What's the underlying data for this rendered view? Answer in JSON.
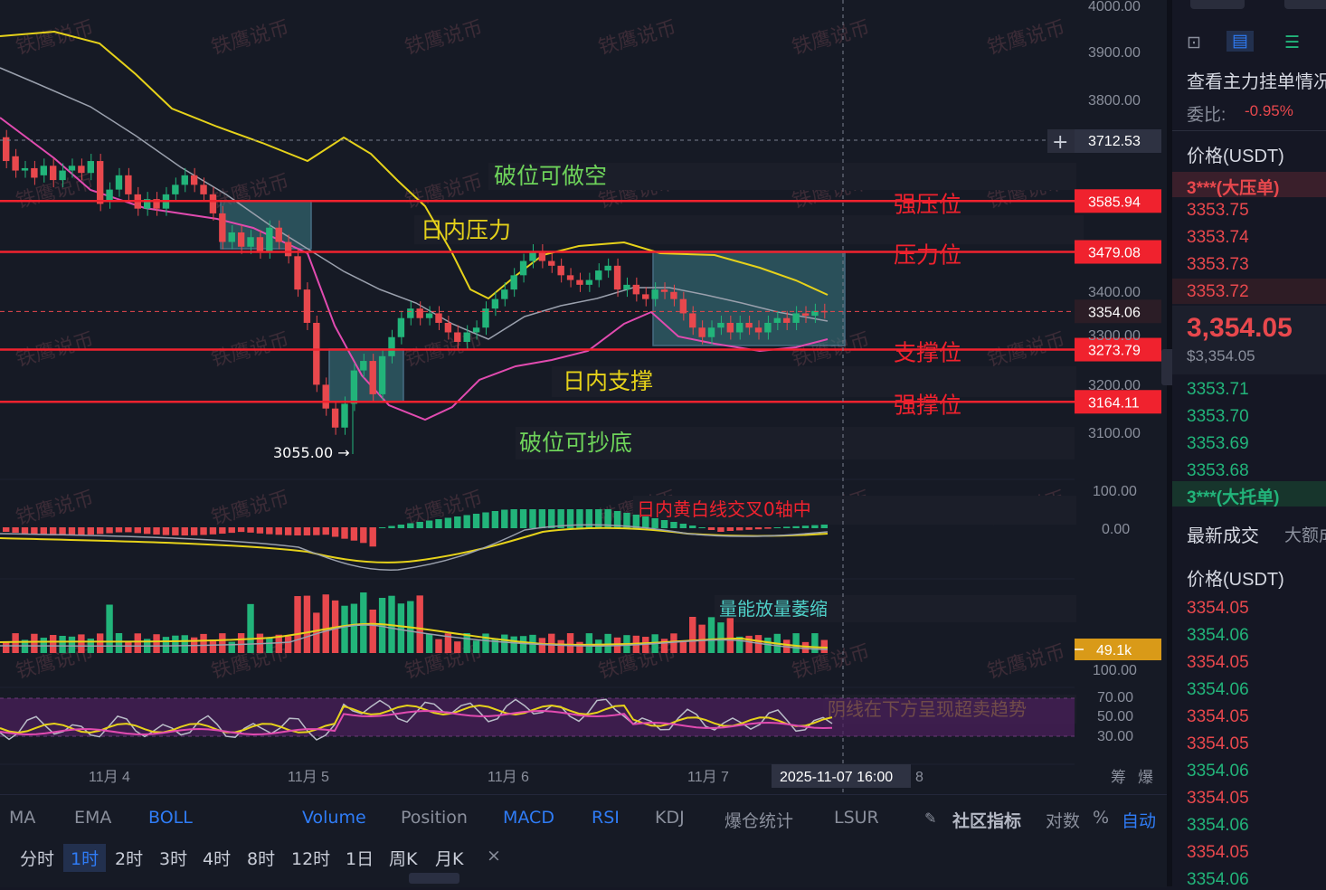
{
  "chart_data": {
    "type": "candlestick",
    "x_ticks": [
      "11月 4",
      "11月 5",
      "11月 6",
      "11月 7",
      "8"
    ],
    "y_ticks": [
      "4000.00",
      "3900.00",
      "3800.00",
      "3400.00",
      "3300.00",
      "3200.00",
      "3100.00"
    ],
    "macd_ticks": [
      "100.00",
      "0.00"
    ],
    "volume_ticks": [
      "100.00"
    ],
    "rsi_ticks": [
      "70.00",
      "50.00",
      "30.00"
    ],
    "crosshair_price": "3712.53",
    "crosshair_time": "2025-11-07 16:00",
    "current_price": "3354.06",
    "low_marker": "3055.00 →",
    "volume_value": "49.1k",
    "levels": [
      {
        "price": 3585.94,
        "label": "3585.94",
        "annotation": "强压位"
      },
      {
        "price": 3479.08,
        "label": "3479.08",
        "annotation": "压力位"
      },
      {
        "price": 3273.79,
        "label": "3273.79",
        "annotation": "支撑位"
      },
      {
        "price": 3164.11,
        "label": "3164.11",
        "annotation": "强撑位"
      }
    ],
    "annotations": {
      "short": "破位可做空",
      "intraday_resistance": "日内压力",
      "intraday_support": "日内支撑",
      "bottom": "破位可抄底",
      "macd": "日内黄白线交叉0轴中",
      "volume": "量能放量萎缩",
      "rsi": "阴线在下方呈现超卖趋势"
    },
    "watermark": "铁鹰说币",
    "candles": [
      [
        3720,
        3670
      ],
      [
        3680,
        3650
      ],
      [
        3650,
        3655
      ],
      [
        3655,
        3635
      ],
      [
        3640,
        3660
      ],
      [
        3660,
        3630
      ],
      [
        3630,
        3650
      ],
      [
        3650,
        3660
      ],
      [
        3660,
        3645
      ],
      [
        3645,
        3670
      ],
      [
        3670,
        3580
      ],
      [
        3585,
        3610
      ],
      [
        3610,
        3640
      ],
      [
        3640,
        3600
      ],
      [
        3600,
        3570
      ],
      [
        3570,
        3590
      ],
      [
        3590,
        3570
      ],
      [
        3570,
        3600
      ],
      [
        3600,
        3620
      ],
      [
        3620,
        3640
      ],
      [
        3640,
        3620
      ],
      [
        3620,
        3600
      ],
      [
        3600,
        3560
      ],
      [
        3560,
        3500
      ],
      [
        3500,
        3520
      ],
      [
        3520,
        3490
      ],
      [
        3490,
        3510
      ],
      [
        3510,
        3480
      ],
      [
        3480,
        3530
      ],
      [
        3530,
        3500
      ],
      [
        3500,
        3470
      ],
      [
        3470,
        3400
      ],
      [
        3400,
        3330
      ],
      [
        3330,
        3200
      ],
      [
        3200,
        3150
      ],
      [
        3150,
        3110
      ],
      [
        3110,
        3160
      ],
      [
        3160,
        3230
      ],
      [
        3230,
        3250
      ],
      [
        3250,
        3180
      ],
      [
        3180,
        3260
      ],
      [
        3260,
        3300
      ],
      [
        3300,
        3340
      ],
      [
        3340,
        3360
      ],
      [
        3360,
        3340
      ],
      [
        3340,
        3350
      ],
      [
        3350,
        3330
      ],
      [
        3330,
        3310
      ],
      [
        3310,
        3290
      ],
      [
        3290,
        3310
      ],
      [
        3310,
        3320
      ],
      [
        3320,
        3360
      ],
      [
        3360,
        3380
      ],
      [
        3380,
        3400
      ],
      [
        3400,
        3430
      ],
      [
        3430,
        3460
      ],
      [
        3460,
        3480
      ],
      [
        3480,
        3460
      ],
      [
        3460,
        3450
      ],
      [
        3450,
        3430
      ],
      [
        3430,
        3420
      ],
      [
        3420,
        3410
      ],
      [
        3410,
        3420
      ],
      [
        3420,
        3440
      ],
      [
        3440,
        3450
      ],
      [
        3450,
        3400
      ],
      [
        3400,
        3410
      ],
      [
        3410,
        3390
      ],
      [
        3390,
        3380
      ],
      [
        3380,
        3400
      ],
      [
        3400,
        3395
      ],
      [
        3395,
        3380
      ],
      [
        3380,
        3350
      ],
      [
        3350,
        3320
      ],
      [
        3320,
        3300
      ],
      [
        3300,
        3320
      ],
      [
        3320,
        3330
      ],
      [
        3330,
        3310
      ],
      [
        3310,
        3330
      ],
      [
        3330,
        3320
      ],
      [
        3320,
        3310
      ],
      [
        3310,
        3330
      ],
      [
        3330,
        3340
      ],
      [
        3340,
        3330
      ],
      [
        3330,
        3350
      ],
      [
        3350,
        3345
      ],
      [
        3345,
        3355
      ],
      [
        3355,
        3354
      ]
    ]
  },
  "toolbar": {
    "indicators": [
      "MA",
      "EMA",
      "BOLL",
      "Volume",
      "Position",
      "MACD",
      "RSI",
      "KDJ",
      "爆仓统计",
      "LSUR"
    ],
    "active_indicators": [
      "BOLL",
      "Volume",
      "MACD",
      "RSI"
    ],
    "community": "社区指标",
    "log": "对数",
    "percent": "%",
    "auto": "自动",
    "timeframes": [
      "分时",
      "1时",
      "2时",
      "3时",
      "4时",
      "8时",
      "12时",
      "1日",
      "周K",
      "月K"
    ],
    "active_timeframe": "1时",
    "right_labels": [
      "筹",
      "爆"
    ]
  },
  "orderbook": {
    "title": "查看主力挂单情况",
    "ratio_label": "委比:",
    "ratio_value": "-0.95%",
    "price_header": "价格(USDT)",
    "big_ask": "3***(大压单)",
    "asks": [
      "3353.75",
      "3353.74",
      "3353.73",
      "3353.72"
    ],
    "last_price": "3,354.05",
    "last_price_usd": "$3,354.05",
    "bids": [
      "3353.71",
      "3353.70",
      "3353.69",
      "3353.68"
    ],
    "big_bid": "3***(大托单)",
    "trades_tab": "最新成交",
    "big_trades_tab": "大额成交",
    "trades_price_header": "价格(USDT)",
    "trades": [
      {
        "price": "3354.05",
        "side": "sell"
      },
      {
        "price": "3354.06",
        "side": "buy"
      },
      {
        "price": "3354.05",
        "side": "sell"
      },
      {
        "price": "3354.06",
        "side": "buy"
      },
      {
        "price": "3354.05",
        "side": "sell"
      },
      {
        "price": "3354.05",
        "side": "sell"
      },
      {
        "price": "3354.06",
        "side": "buy"
      },
      {
        "price": "3354.05",
        "side": "sell"
      },
      {
        "price": "3354.06",
        "side": "buy"
      },
      {
        "price": "3354.05",
        "side": "sell"
      },
      {
        "price": "3354.06",
        "side": "buy"
      }
    ]
  },
  "colors": {
    "up": "#22b47a",
    "down": "#e8484d",
    "level_line": "#f0222e",
    "boll_upper": "#e6d21a",
    "boll_mid": "#9aa0ad",
    "boll_lower": "#e14bb0",
    "accent": "#2f7cf6"
  }
}
